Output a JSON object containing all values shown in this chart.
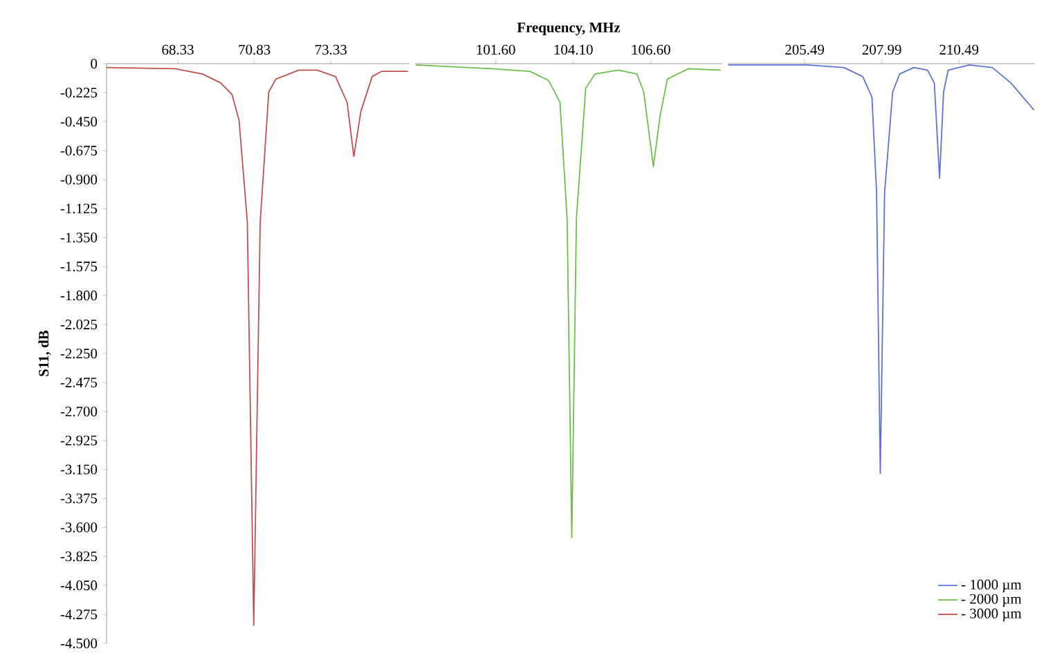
{
  "chart_data": [
    {
      "type": "line",
      "ylabel": "S11, dB",
      "xlim": [
        66.0,
        75.9
      ],
      "xticks": [
        68.33,
        70.83,
        73.33
      ],
      "ylim": [
        -4.5,
        0
      ],
      "yticks": [
        0,
        -0.225,
        {
          "value": -0.45,
          "label": "-0.450"
        },
        -0.675,
        {
          "value": -0.9,
          "label": "-0.900"
        },
        -1.125,
        {
          "value": -1.35,
          "label": "-1.350"
        },
        -1.575,
        {
          "value": -1.8,
          "label": "-1.800"
        },
        -2.025,
        {
          "value": -2.25,
          "label": "-2.250"
        },
        -2.475,
        {
          "value": -2.7,
          "label": "-2.700"
        },
        -2.925,
        {
          "value": -3.15,
          "label": "-3.150"
        },
        -3.375,
        {
          "value": -3.6,
          "label": "-3.600"
        },
        -3.825,
        {
          "value": -4.05,
          "label": "-4.050"
        },
        -4.275,
        {
          "value": -4.5,
          "label": "-4.500"
        }
      ],
      "series": [
        {
          "name": "- 3000 µm",
          "color": "#c0504d",
          "x": [
            66.0,
            68.23,
            69.13,
            69.73,
            70.1,
            70.33,
            70.6,
            70.81,
            71.02,
            71.3,
            71.53,
            72.28,
            72.88,
            73.48,
            73.86,
            74.08,
            74.31,
            74.68,
            74.98,
            75.85
          ],
          "values": [
            -0.03,
            -0.04,
            -0.08,
            -0.15,
            -0.24,
            -0.44,
            -1.23,
            -4.36,
            -1.23,
            -0.22,
            -0.12,
            -0.05,
            -0.05,
            -0.1,
            -0.3,
            -0.72,
            -0.37,
            -0.1,
            -0.06,
            -0.06
          ]
        }
      ]
    },
    {
      "type": "line",
      "xlabel": "Frequency, MHz",
      "xlim": [
        99.0,
        108.9
      ],
      "xticks": [
        {
          "value": 101.6,
          "label": "101.60"
        },
        {
          "value": 104.1,
          "label": "104.10"
        },
        {
          "value": 106.6,
          "label": "106.60"
        }
      ],
      "ylim": [
        -4.5,
        0
      ],
      "tick_labels": "x",
      "series": [
        {
          "name": "- 2000 µm",
          "color": "#6cc04a",
          "x": [
            99.02,
            101.5,
            102.7,
            103.3,
            103.67,
            103.9,
            104.05,
            104.2,
            104.5,
            104.8,
            105.55,
            106.15,
            106.37,
            106.68,
            106.9,
            107.13,
            107.8,
            108.85
          ],
          "values": [
            -0.01,
            -0.04,
            -0.06,
            -0.13,
            -0.3,
            -1.2,
            -3.68,
            -1.2,
            -0.19,
            -0.08,
            -0.05,
            -0.08,
            -0.22,
            -0.8,
            -0.4,
            -0.12,
            -0.04,
            -0.05
          ]
        }
      ]
    },
    {
      "type": "line",
      "xlim": [
        203.0,
        212.95
      ],
      "xticks": [
        205.49,
        207.99,
        210.49
      ],
      "ylim": [
        -4.5,
        0
      ],
      "tick_labels": "x",
      "legend": "bottom right",
      "series": [
        {
          "name": "- 1000 µm",
          "color": "#5b73d9",
          "x": [
            203.01,
            205.57,
            206.76,
            207.37,
            207.67,
            207.82,
            207.94,
            208.08,
            208.34,
            208.57,
            209.02,
            209.47,
            209.69,
            209.86,
            209.99,
            210.14,
            210.82,
            211.57,
            212.17,
            212.92
          ],
          "values": [
            -0.01,
            -0.01,
            -0.03,
            -0.1,
            -0.26,
            -1.0,
            -3.18,
            -1.0,
            -0.22,
            -0.08,
            -0.03,
            -0.05,
            -0.15,
            -0.89,
            -0.22,
            -0.05,
            -0.01,
            -0.03,
            -0.15,
            -0.36
          ]
        }
      ]
    }
  ]
}
